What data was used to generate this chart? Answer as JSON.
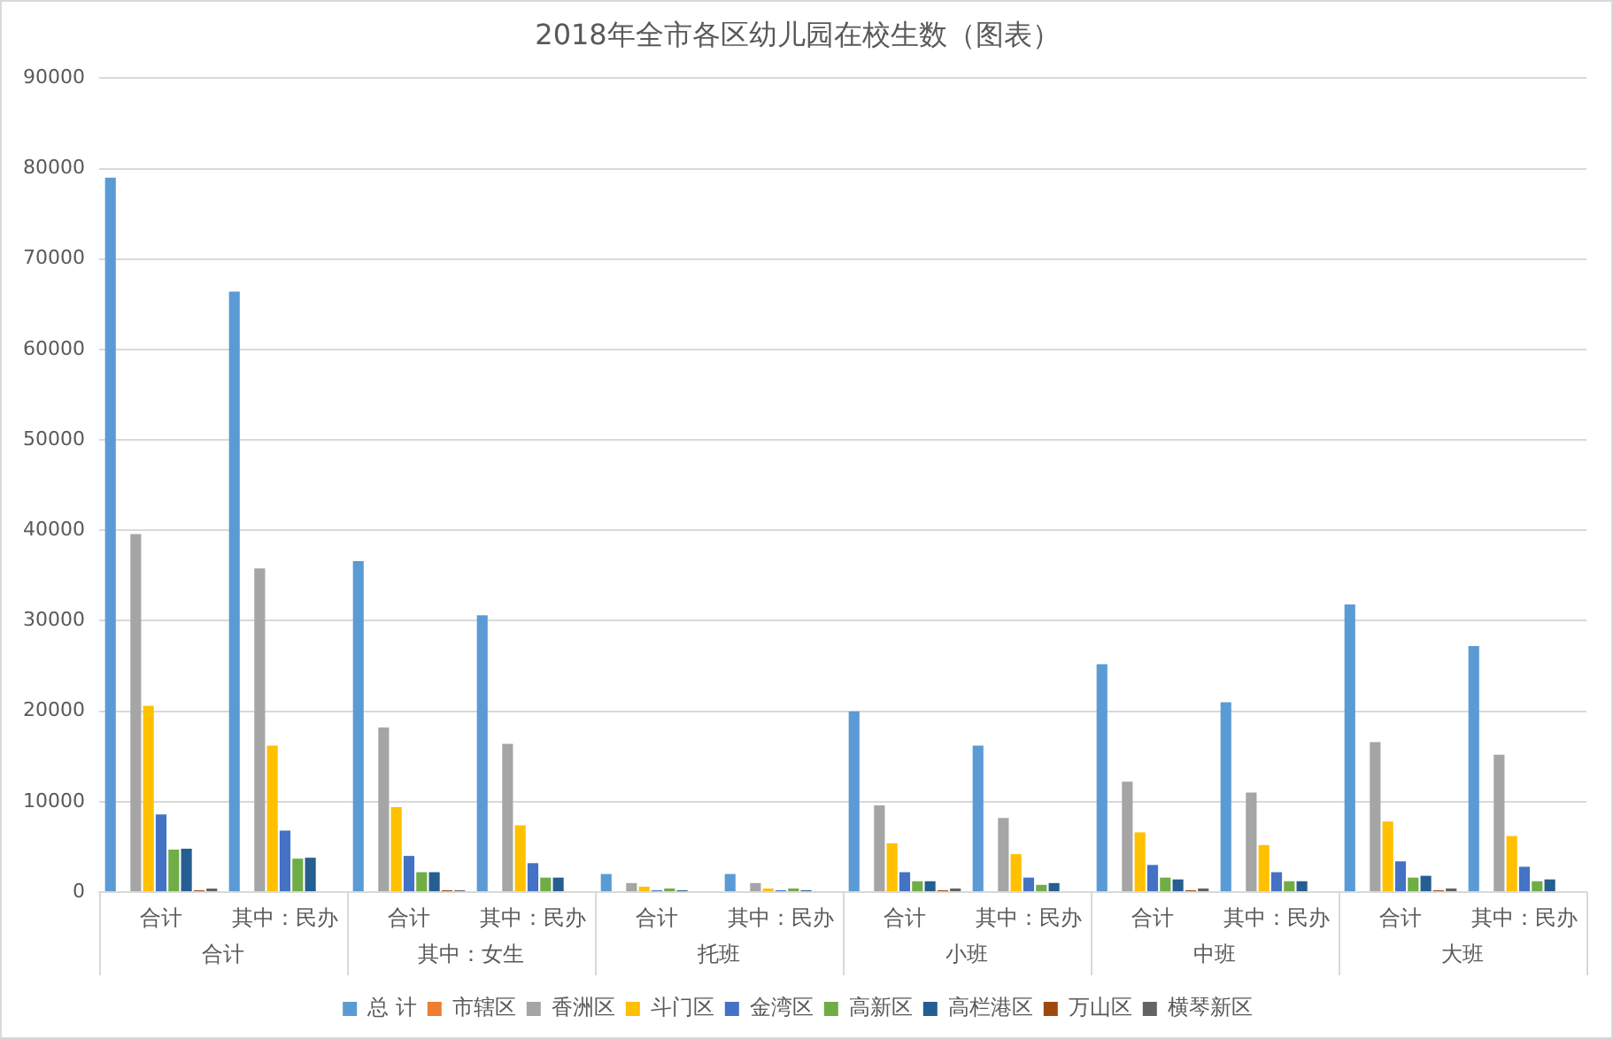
{
  "chart_data": {
    "type": "bar",
    "title": "2018年全市各区幼儿园在校生数（图表）",
    "categories": [
      "合计",
      "其中：民办",
      "合计",
      "其中：民办",
      "合计",
      "其中：民办",
      "合计",
      "其中：民办",
      "合计",
      "其中：民办",
      "合计",
      "其中：民办"
    ],
    "annotations": [
      "合计",
      "其中：女生",
      "托班",
      "小班",
      "中班",
      "大班"
    ],
    "series": [
      {
        "name": "总 计",
        "color": "#5b9bd5",
        "values": [
          79000,
          66400,
          36600,
          30600,
          2000,
          2000,
          20000,
          16200,
          25200,
          21000,
          31800,
          27200
        ]
      },
      {
        "name": "市辖区",
        "color": "#ed7d31",
        "values": [
          0,
          0,
          0,
          0,
          0,
          0,
          0,
          0,
          0,
          0,
          0,
          0
        ]
      },
      {
        "name": "香洲区",
        "color": "#a5a5a5",
        "values": [
          39600,
          35800,
          18200,
          16400,
          1000,
          1000,
          9600,
          8200,
          12200,
          11000,
          16600,
          15200
        ]
      },
      {
        "name": "斗门区",
        "color": "#ffc000",
        "values": [
          20600,
          16200,
          9400,
          7400,
          600,
          400,
          5400,
          4200,
          6600,
          5200,
          7800,
          6200
        ]
      },
      {
        "name": "金湾区",
        "color": "#4472c4",
        "values": [
          8600,
          6800,
          4000,
          3200,
          200,
          200,
          2200,
          1600,
          3000,
          2200,
          3400,
          2800
        ]
      },
      {
        "name": "高新区",
        "color": "#70ad47",
        "values": [
          4700,
          3700,
          2200,
          1600,
          400,
          400,
          1200,
          800,
          1600,
          1200,
          1600,
          1200
        ]
      },
      {
        "name": "高栏港区",
        "color": "#255e91",
        "values": [
          4800,
          3800,
          2200,
          1600,
          200,
          200,
          1200,
          1000,
          1400,
          1200,
          1800,
          1400
        ]
      },
      {
        "name": "万山区",
        "color": "#9e480e",
        "values": [
          200,
          0,
          200,
          0,
          0,
          0,
          200,
          0,
          200,
          0,
          200,
          0
        ]
      },
      {
        "name": "横琴新区",
        "color": "#636363",
        "values": [
          400,
          0,
          200,
          0,
          0,
          0,
          400,
          0,
          400,
          0,
          400,
          0
        ]
      }
    ],
    "ylim": [
      0,
      90000
    ],
    "yticks": [
      0,
      10000,
      20000,
      30000,
      40000,
      50000,
      60000,
      70000,
      80000,
      90000
    ],
    "grid": "y",
    "legend": "bottom"
  }
}
